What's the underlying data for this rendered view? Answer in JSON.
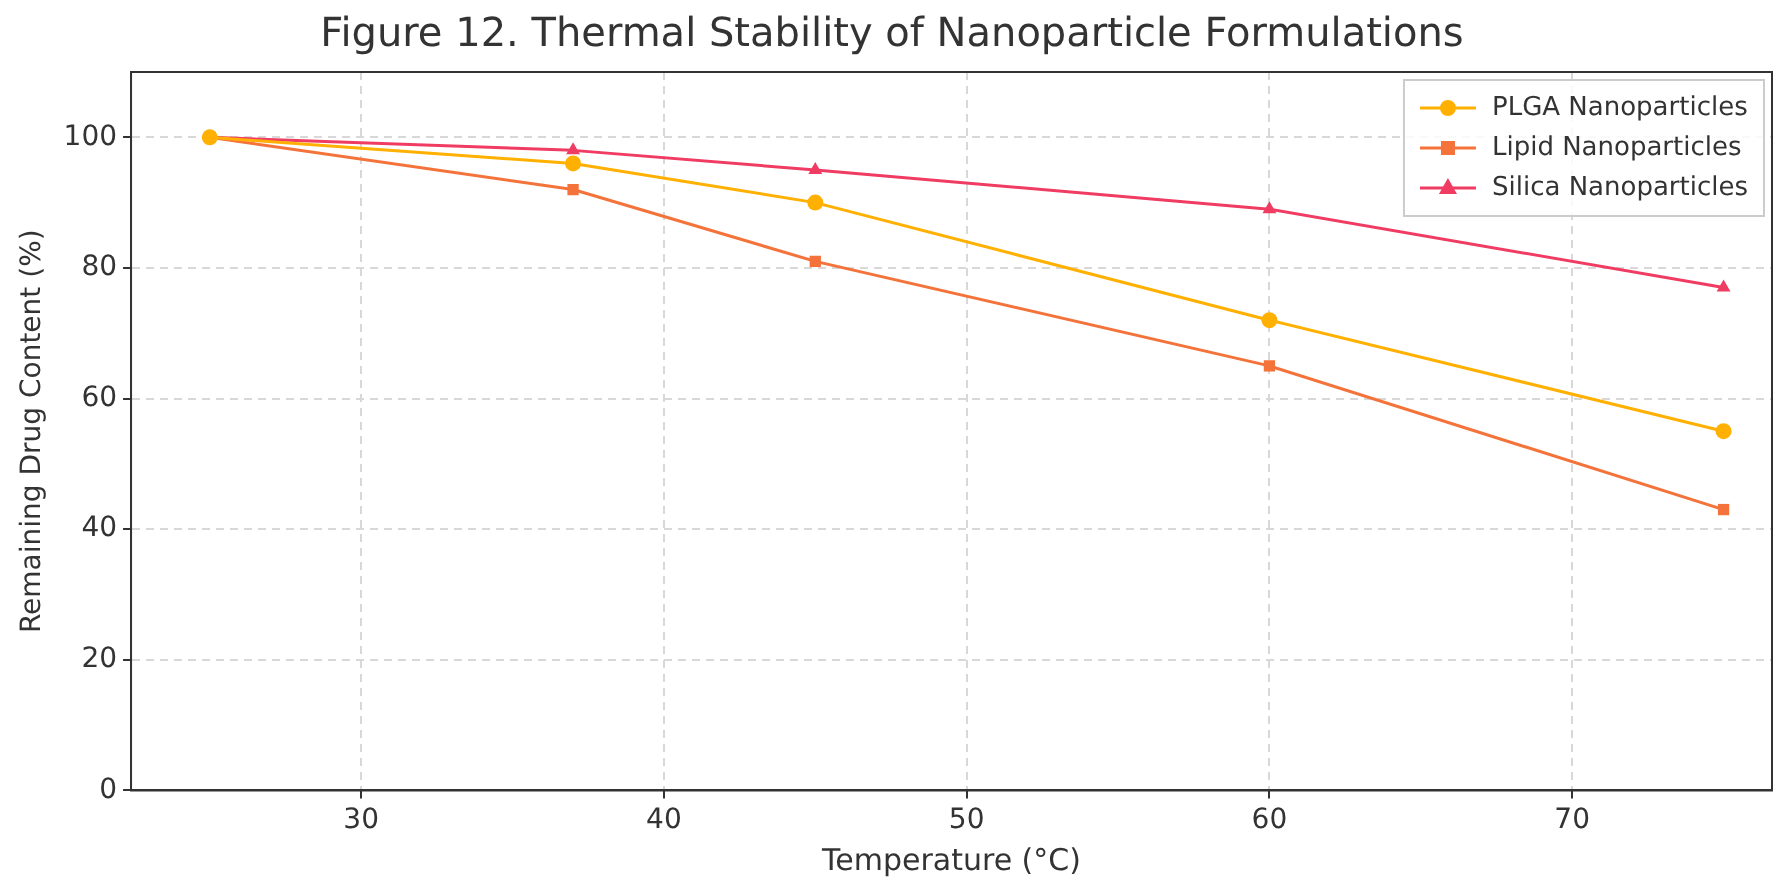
{
  "chart_data": {
    "type": "line",
    "title": "Figure 12. Thermal Stability of Nanoparticle Formulations",
    "xlabel": "Temperature (°C)",
    "ylabel": "Remaining Drug Content (%)",
    "x": [
      25,
      37,
      45,
      60,
      75
    ],
    "series": [
      {
        "name": "PLGA Nanoparticles",
        "color": "#ffb000",
        "marker": "circle",
        "values": [
          100,
          96,
          90,
          72,
          55
        ]
      },
      {
        "name": "Lipid Nanoparticles",
        "color": "#f4733a",
        "marker": "square",
        "values": [
          100,
          92,
          81,
          65,
          43
        ]
      },
      {
        "name": "Silica Nanoparticles",
        "color": "#f03c62",
        "marker": "triangle",
        "values": [
          100,
          98,
          95,
          89,
          77
        ]
      }
    ],
    "xlim": [
      22.4,
      76.6
    ],
    "xticks": [
      30,
      40,
      50,
      60,
      70
    ],
    "ylim": [
      0,
      110
    ],
    "yticks": [
      0,
      20,
      40,
      60,
      80,
      100
    ],
    "grid": true,
    "legend": "top right",
    "line_style": "solid"
  }
}
